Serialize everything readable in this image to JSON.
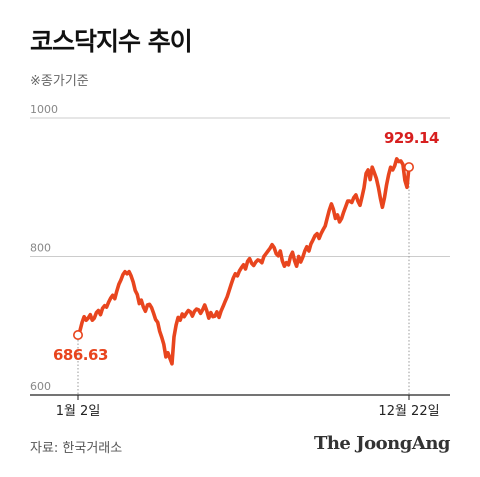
{
  "title": "코스닥지수 추이",
  "subtitle": "※종가기준",
  "source": "자료: 한국거래소",
  "brand": "The JoongAng",
  "colors": {
    "line": "#e8451e",
    "label": "#d71f1f",
    "grid": "#cccccc",
    "axis": "#222222"
  },
  "chart_data": {
    "type": "line",
    "title": "코스닥지수 추이",
    "ylim": [
      600,
      1000
    ],
    "yticks": [
      "1000",
      "800",
      "600"
    ],
    "grid": true,
    "xticks": [
      "1월 2일",
      "12월 22일"
    ],
    "series": [
      {
        "values": [
          686.63,
          693,
          705,
          713,
          708,
          711,
          716,
          708,
          711,
          719,
          722,
          716,
          725,
          729,
          727,
          734,
          740,
          744,
          739,
          750,
          760,
          766,
          774,
          778,
          775,
          778,
          772,
          763,
          751,
          745,
          732,
          737,
          727,
          721,
          730,
          731,
          726,
          718,
          709,
          705,
          692,
          683,
          673,
          655,
          661,
          653,
          645,
          684,
          701,
          712,
          708,
          717,
          713,
          718,
          722,
          720,
          714,
          721,
          724,
          723,
          718,
          723,
          730,
          722,
          711,
          719,
          713,
          714,
          720,
          712,
          721,
          728,
          735,
          742,
          751,
          760,
          769,
          775,
          772,
          779,
          784,
          788,
          782,
          793,
          797,
          790,
          787,
          792,
          795,
          794,
          791,
          800,
          804,
          808,
          812,
          817,
          813,
          804,
          801,
          808,
          794,
          786,
          791,
          788,
          800,
          806,
          794,
          786,
          800,
          792,
          799,
          808,
          814,
          808,
          818,
          824,
          830,
          833,
          826,
          833,
          839,
          844,
          856,
          867,
          876,
          868,
          855,
          860,
          850,
          855,
          864,
          872,
          880,
          880,
          878,
          885,
          889,
          880,
          874,
          886,
          899,
          920,
          925,
          911,
          929,
          921,
          913,
          900,
          884,
          871,
          885,
          903,
          918,
          929,
          925,
          931,
          941,
          937,
          938,
          933,
          910,
          900,
          929.14
        ]
      }
    ],
    "annotations": [
      {
        "label": "686.63",
        "value": 686.63,
        "date": "1월 2일"
      },
      {
        "label": "929.14",
        "value": 929.14,
        "date": "12월 22일"
      }
    ]
  }
}
